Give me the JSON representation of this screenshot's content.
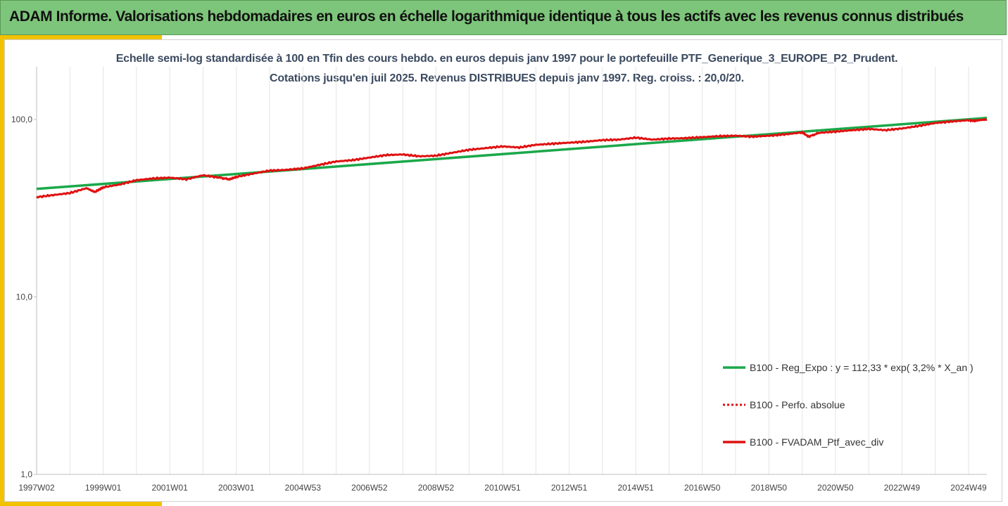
{
  "header": {
    "title": "ADAM Informe. Valorisations hebdomadaires en euros en échelle logarithmique identique à tous les actifs avec les revenus connus distribués"
  },
  "chart_data": {
    "type": "line",
    "title_lines": [
      "Echelle semi-log standardisée  à 100 en Tfin des cours hebdo.  en euros  depuis janv 1997 pour le portefeuille PTF_Generique_3_EUROPE_P2_Prudent.",
      "Cotations  jusqu'en juil 2025. Revenus DISTRIBUES depuis janv 1997. Reg. croiss. : 20,0/20."
    ],
    "y_scale": "log",
    "ylim": [
      1,
      200
    ],
    "y_ticks": [
      {
        "value": 1,
        "label": "1,0"
      },
      {
        "value": 10,
        "label": "10,0"
      },
      {
        "value": 100,
        "label": "100,0"
      }
    ],
    "x_range": [
      1997.0,
      2025.55
    ],
    "x_ticks": [
      {
        "year": 1997.0,
        "label": "1997W02"
      },
      {
        "year": 1999.0,
        "label": "1999W01"
      },
      {
        "year": 2001.0,
        "label": "2001W01"
      },
      {
        "year": 2003.0,
        "label": "2003W01"
      },
      {
        "year": 2005.0,
        "label": "2004W53"
      },
      {
        "year": 2007.0,
        "label": "2006W52"
      },
      {
        "year": 2009.0,
        "label": "2008W52"
      },
      {
        "year": 2011.0,
        "label": "2010W51"
      },
      {
        "year": 2013.0,
        "label": "2012W51"
      },
      {
        "year": 2015.0,
        "label": "2014W51"
      },
      {
        "year": 2017.0,
        "label": "2016W50"
      },
      {
        "year": 2019.0,
        "label": "2018W50"
      },
      {
        "year": 2021.0,
        "label": "2020W50"
      },
      {
        "year": 2023.0,
        "label": "2022W49"
      },
      {
        "year": 2025.0,
        "label": "2024W49"
      }
    ],
    "grid": "vertical",
    "legend_position": "bottom-right",
    "series": [
      {
        "name": "B100 - Reg_Expo : y = 112,33 * exp( 3,2% *  X_an )",
        "color": "#1aa84a",
        "style": "solid",
        "points": [
          [
            1997.0,
            40.6
          ],
          [
            2025.55,
            102.0
          ]
        ]
      },
      {
        "name": "B100 - Perfo. absolue",
        "color": "#e01010",
        "style": "dotted",
        "points": []
      },
      {
        "name": "B100 - FVADAM_Ptf_avec_div",
        "color": "#e01010",
        "style": "solid",
        "points": [
          [
            1997.0,
            36.5
          ],
          [
            1997.5,
            37.5
          ],
          [
            1998.0,
            38.5
          ],
          [
            1998.5,
            41.0
          ],
          [
            1998.75,
            39.0
          ],
          [
            1999.0,
            41.5
          ],
          [
            1999.5,
            43.0
          ],
          [
            2000.0,
            45.5
          ],
          [
            2000.5,
            46.5
          ],
          [
            2001.0,
            47.0
          ],
          [
            2001.5,
            46.0
          ],
          [
            2002.0,
            48.5
          ],
          [
            2002.5,
            47.0
          ],
          [
            2002.8,
            46.0
          ],
          [
            2003.0,
            47.5
          ],
          [
            2003.5,
            49.5
          ],
          [
            2004.0,
            51.5
          ],
          [
            2004.5,
            52.0
          ],
          [
            2005.0,
            53.0
          ],
          [
            2005.5,
            55.5
          ],
          [
            2006.0,
            58.0
          ],
          [
            2006.5,
            59.0
          ],
          [
            2007.0,
            61.0
          ],
          [
            2007.5,
            63.0
          ],
          [
            2008.0,
            63.5
          ],
          [
            2008.5,
            62.0
          ],
          [
            2009.0,
            62.5
          ],
          [
            2009.5,
            65.0
          ],
          [
            2010.0,
            67.5
          ],
          [
            2010.5,
            69.0
          ],
          [
            2011.0,
            70.5
          ],
          [
            2011.5,
            69.5
          ],
          [
            2012.0,
            72.0
          ],
          [
            2012.5,
            73.0
          ],
          [
            2013.0,
            74.0
          ],
          [
            2013.5,
            75.0
          ],
          [
            2014.0,
            76.5
          ],
          [
            2014.5,
            77.0
          ],
          [
            2015.0,
            79.0
          ],
          [
            2015.5,
            77.0
          ],
          [
            2016.0,
            78.0
          ],
          [
            2016.5,
            78.5
          ],
          [
            2017.0,
            79.5
          ],
          [
            2017.5,
            80.5
          ],
          [
            2018.0,
            81.0
          ],
          [
            2018.5,
            80.0
          ],
          [
            2019.0,
            81.0
          ],
          [
            2019.5,
            82.5
          ],
          [
            2020.0,
            84.5
          ],
          [
            2020.2,
            80.0
          ],
          [
            2020.5,
            84.0
          ],
          [
            2021.0,
            85.5
          ],
          [
            2021.5,
            87.0
          ],
          [
            2022.0,
            88.5
          ],
          [
            2022.5,
            87.0
          ],
          [
            2023.0,
            89.0
          ],
          [
            2023.5,
            92.0
          ],
          [
            2024.0,
            95.5
          ],
          [
            2024.5,
            97.5
          ],
          [
            2025.0,
            99.0
          ],
          [
            2025.2,
            98.0
          ],
          [
            2025.55,
            100.0
          ]
        ]
      }
    ]
  }
}
